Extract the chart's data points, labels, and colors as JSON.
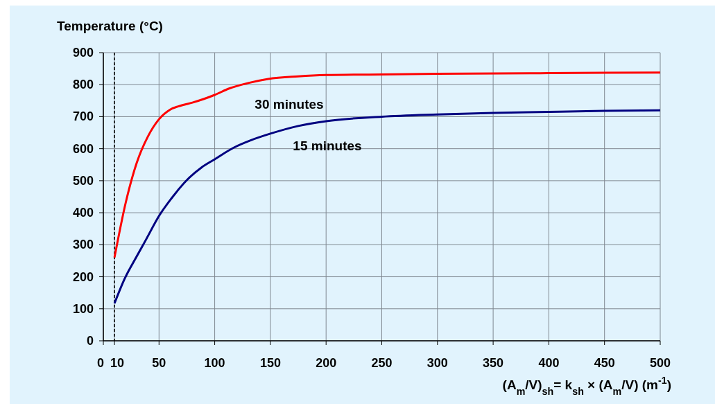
{
  "chart_data": {
    "type": "line",
    "ylabel": "Temperature (°C)",
    "xlabel": "(A$_{m}$/V)$_{sh}$= k$_{sh}$ × (A$_{m}$/V) (m$^{-1}$)",
    "xlim": [
      0,
      500
    ],
    "xticks": [
      0,
      10,
      50,
      100,
      150,
      200,
      250,
      300,
      350,
      400,
      450,
      500
    ],
    "ylim": [
      0,
      900
    ],
    "yticks": [
      0,
      100,
      200,
      300,
      400,
      500,
      600,
      700,
      800,
      900
    ],
    "grid": true,
    "marker": "none",
    "line_style": "solid",
    "series": [
      {
        "color": "#ff0000",
        "x": [
          10,
          20,
          30,
          40,
          50,
          60,
          70,
          80,
          90,
          100,
          113,
          130,
          148,
          175,
          200,
          250,
          300,
          400,
          500
        ],
        "values": [
          260,
          430,
          556,
          638,
          692,
          722,
          735,
          744,
          755,
          768,
          788,
          805,
          818,
          826,
          830,
          832,
          834,
          836,
          838
        ]
      },
      {
        "color": "#000080",
        "x": [
          10,
          19,
          30,
          38,
          50,
          61,
          75,
          88,
          100,
          117,
          133,
          150,
          175,
          200,
          250,
          300,
          350,
          400,
          450,
          500
        ],
        "values": [
          117,
          193,
          264,
          314,
          390,
          444,
          502,
          541,
          567,
          603,
          627,
          647,
          671,
          686,
          700,
          707,
          712,
          715,
          718,
          720
        ]
      }
    ],
    "ref_lines": [
      {
        "axis": "x",
        "value": 10,
        "line_style": "dashed",
        "color": "#000000"
      }
    ],
    "annotations": [
      "30 minutes",
      "15 minutes"
    ]
  }
}
